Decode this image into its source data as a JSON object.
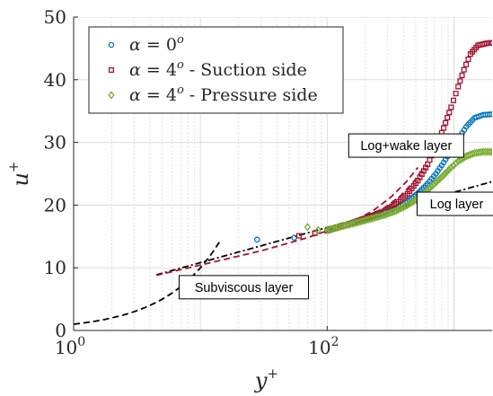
{
  "chart_data": {
    "type": "scatter",
    "title": "",
    "xlabel": "y+",
    "ylabel": "u+",
    "xscale": "log",
    "xlim": [
      1,
      2000
    ],
    "ylim": [
      0,
      50
    ],
    "x_ticks": [
      {
        "value": 1,
        "base": "10",
        "exp": "0"
      },
      {
        "value": 100,
        "base": "10",
        "exp": "2"
      }
    ],
    "y_ticks": [
      0,
      10,
      20,
      30,
      40,
      50
    ],
    "grid": true,
    "legend_position": "top-left",
    "series": [
      {
        "name": "α = 0° ",
        "label_parts": {
          "var": "α",
          "eq": " = 0",
          "sup": "o",
          "suffix": ""
        },
        "marker": "circle",
        "color": "#0072BD",
        "x": [
          28,
          55,
          100,
          130,
          170,
          220,
          280,
          350,
          430,
          520,
          620,
          720,
          830,
          950,
          1080,
          1250,
          1450,
          1700,
          2000
        ],
        "y": [
          14.5,
          14.8,
          15.9,
          16.6,
          17.4,
          18.1,
          18.8,
          19.6,
          20.6,
          21.9,
          23.4,
          25.0,
          26.8,
          28.7,
          30.5,
          32.5,
          33.9,
          34.4,
          34.5
        ]
      },
      {
        "name": "α = 4° - Suction side",
        "label_parts": {
          "var": "α",
          "eq": " = 4",
          "sup": "o",
          "suffix": " - Suction side"
        },
        "marker": "square",
        "color": "#A2142F",
        "x": [
          60,
          80,
          100,
          130,
          170,
          220,
          280,
          350,
          430,
          520,
          620,
          720,
          830,
          950,
          1080,
          1200,
          1350,
          1550,
          1800,
          2000
        ],
        "y": [
          15.1,
          15.5,
          15.9,
          16.6,
          17.4,
          18.2,
          19.0,
          20.2,
          21.8,
          23.9,
          26.5,
          29.3,
          32.3,
          35.6,
          38.9,
          41.6,
          44.1,
          45.5,
          45.8,
          45.9
        ]
      },
      {
        "name": "α = 4° - Pressure side",
        "label_parts": {
          "var": "α",
          "eq": " = 4",
          "sup": "o",
          "suffix": " - Pressure side"
        },
        "marker": "diamond",
        "color": "#77AC30",
        "x": [
          70,
          85,
          100,
          130,
          170,
          220,
          280,
          350,
          430,
          520,
          620,
          720,
          830,
          950,
          1080,
          1250,
          1450,
          1700,
          2000
        ],
        "y": [
          16.5,
          16.0,
          16.0,
          16.6,
          17.2,
          17.8,
          18.4,
          19.1,
          20.0,
          21.1,
          22.4,
          23.6,
          24.8,
          26.0,
          27.0,
          27.8,
          28.3,
          28.5,
          28.5
        ]
      }
    ],
    "reference_lines": [
      {
        "name": "viscous sublayer",
        "style": "dashed",
        "color": "#000000",
        "formula": "u+ = y+",
        "x_range": [
          1,
          14.5
        ]
      },
      {
        "name": "log law",
        "style": "dash-dot",
        "color": "#000000",
        "formula": "u+ = (1/0.41) ln y+ + 5.2",
        "x_range": [
          4.5,
          2000
        ]
      },
      {
        "name": "log+wake fit 1",
        "style": "dashed",
        "color": "#A2142F",
        "x": [
          4.5,
          30,
          70,
          110,
          160,
          230,
          320,
          420,
          520
        ],
        "y": [
          8.8,
          12.7,
          14.8,
          16.2,
          17.4,
          19.1,
          21.3,
          23.7,
          26.0
        ]
      },
      {
        "name": "log+wake fit 2",
        "style": "dashed",
        "color": "#A2142F",
        "x": [
          100,
          180,
          280,
          380,
          480,
          580
        ],
        "y": [
          16.3,
          17.8,
          19.5,
          21.5,
          23.7,
          26.0
        ]
      }
    ],
    "annotations": [
      {
        "text": "Log+wake layer",
        "x": 420,
        "y": 29.5
      },
      {
        "text": "Log layer",
        "x": 1050,
        "y": 20.2
      },
      {
        "text": "Subviscous layer",
        "x": 22,
        "y": 6.9
      }
    ]
  }
}
